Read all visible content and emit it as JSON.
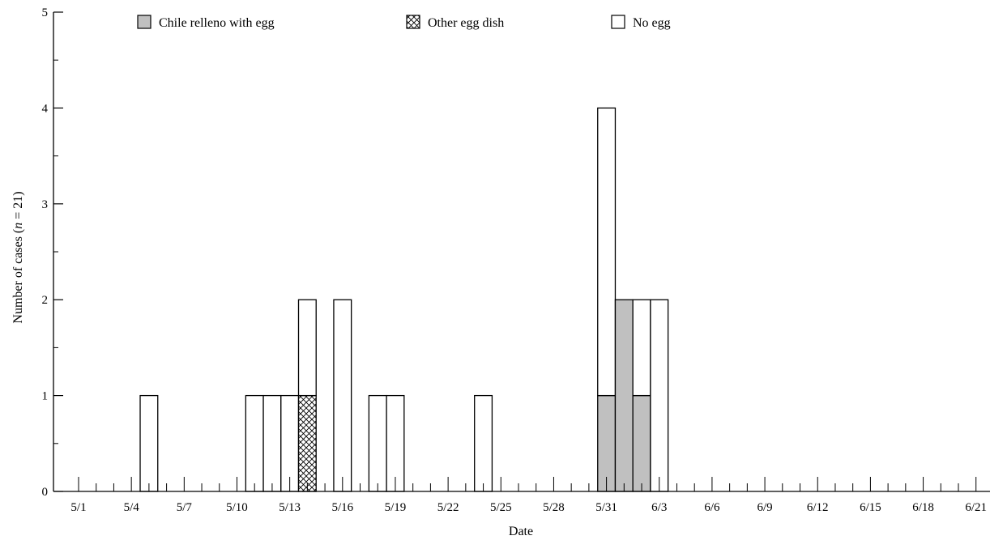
{
  "chart_data": {
    "type": "bar",
    "stacked": true,
    "xlabel": "Date",
    "ylabel_prefix": "Number of cases (",
    "ylabel_italic": "n",
    "ylabel_suffix": " = 21)",
    "ylim": [
      0,
      5
    ],
    "yticks": [
      0,
      1,
      2,
      3,
      4,
      5
    ],
    "x_start": "5/1",
    "x_end": "6/21",
    "x_tick_labels": [
      "5/1",
      "5/4",
      "5/7",
      "5/10",
      "5/13",
      "5/16",
      "5/19",
      "5/22",
      "5/25",
      "5/28",
      "5/31",
      "6/3",
      "6/6",
      "6/9",
      "6/12",
      "6/15",
      "6/18",
      "6/21"
    ],
    "legend_position": "top",
    "grid": false,
    "series": [
      {
        "name": "Chile relleno with egg",
        "pattern": "solid-gray",
        "color": "#c0c0c0"
      },
      {
        "name": "Other egg dish",
        "pattern": "crosshatch",
        "color": "#ffffff"
      },
      {
        "name": "No egg",
        "pattern": "none",
        "color": "#ffffff"
      }
    ],
    "bars": [
      {
        "date": "5/5",
        "chile": 0,
        "other": 0,
        "none": 1
      },
      {
        "date": "5/11",
        "chile": 0,
        "other": 0,
        "none": 1
      },
      {
        "date": "5/12",
        "chile": 0,
        "other": 0,
        "none": 1
      },
      {
        "date": "5/13",
        "chile": 0,
        "other": 0,
        "none": 1
      },
      {
        "date": "5/14",
        "chile": 0,
        "other": 1,
        "none": 1
      },
      {
        "date": "5/16",
        "chile": 0,
        "other": 0,
        "none": 2
      },
      {
        "date": "5/18",
        "chile": 0,
        "other": 0,
        "none": 1
      },
      {
        "date": "5/19",
        "chile": 0,
        "other": 0,
        "none": 1
      },
      {
        "date": "5/24",
        "chile": 0,
        "other": 0,
        "none": 1
      },
      {
        "date": "5/31",
        "chile": 1,
        "other": 0,
        "none": 3
      },
      {
        "date": "6/1",
        "chile": 2,
        "other": 0,
        "none": 0
      },
      {
        "date": "6/2",
        "chile": 1,
        "other": 0,
        "none": 1
      },
      {
        "date": "6/3",
        "chile": 0,
        "other": 0,
        "none": 2
      }
    ]
  }
}
